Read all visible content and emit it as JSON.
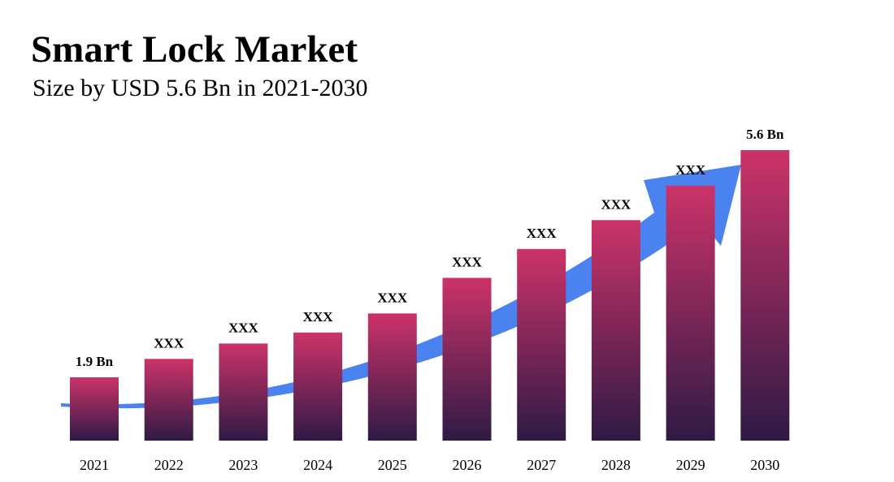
{
  "chart_data": {
    "type": "bar",
    "title": "Smart Lock Market",
    "subtitle": "Size by USD 5.6 Bn in 2021-2030",
    "categories": [
      "2021",
      "2022",
      "2023",
      "2024",
      "2025",
      "2026",
      "2027",
      "2028",
      "2029",
      "2030"
    ],
    "values": [
      1.9,
      2.2,
      2.45,
      2.63,
      2.94,
      3.52,
      3.99,
      4.46,
      5.02,
      5.6
    ],
    "value_labels": [
      "1.9 Bn",
      "XXX",
      "XXX",
      "XXX",
      "XXX",
      "XXX",
      "XXX",
      "XXX",
      "XXX",
      "5.6 Bn"
    ],
    "gradient": [
      "#cc3369",
      "#2e1a45"
    ]
  }
}
